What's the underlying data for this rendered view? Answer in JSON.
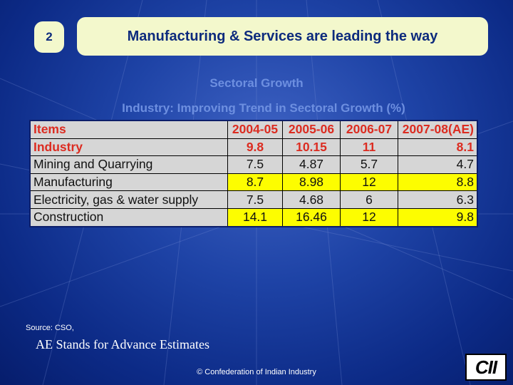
{
  "slide_number": "2",
  "title": "Manufacturing & Services are leading the way",
  "subtitle": "Sectoral Growth",
  "table_caption": "Industry: Improving Trend in Sectoral Growth (%)",
  "table": {
    "header": [
      "Items",
      "2004-05",
      "2005-06",
      "2006-07",
      "2007-08(AE)"
    ],
    "rows": [
      {
        "label": "Industry",
        "values": [
          "9.8",
          "10.15",
          "11",
          "8.1"
        ]
      },
      {
        "label": "Mining and Quarrying",
        "values": [
          "7.5",
          "4.87",
          "5.7",
          "4.7"
        ]
      },
      {
        "label": "Manufacturing",
        "values": [
          "8.7",
          "8.98",
          "12",
          "8.8"
        ]
      },
      {
        "label": "Electricity, gas & water supply",
        "values": [
          "7.5",
          "4.68",
          "6",
          "6.3"
        ]
      },
      {
        "label": "Construction",
        "values": [
          "14.1",
          "16.46",
          "12",
          "9.8"
        ]
      }
    ]
  },
  "source": "Source: CSO,",
  "note": "AE Stands for Advance Estimates",
  "copyright": "© Confederation of Indian Industry",
  "logo_text": "CII",
  "colors": {
    "background": "#1e43a6",
    "title_box": "#f3f8cc",
    "title_text": "#0d2b7d",
    "header_text": "#dc2c21",
    "highlight": "#fdfd00",
    "cell_gray": "#d6d6d6"
  }
}
